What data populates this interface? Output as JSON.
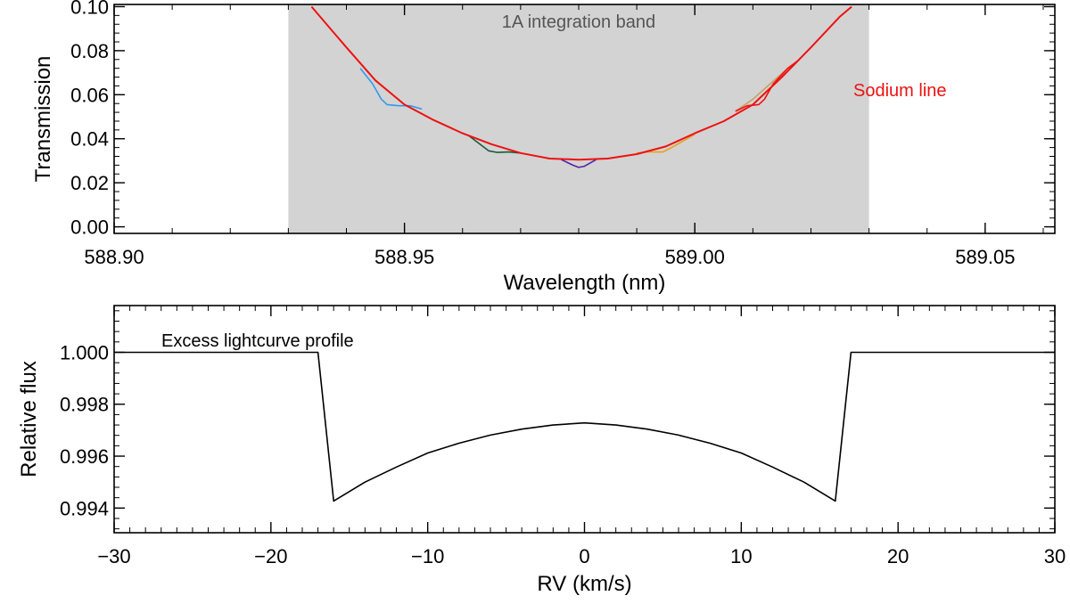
{
  "chart_data": [
    {
      "type": "line",
      "xlabel": "Wavelength (nm)",
      "ylabel": "Transmission",
      "xlim": [
        588.9,
        589.062
      ],
      "ylim": [
        -0.003,
        0.101
      ],
      "xticks": [
        "588.90",
        "588.95",
        "589.00",
        "589.05"
      ],
      "xtick_values": [
        588.9,
        588.95,
        589.0,
        589.05
      ],
      "yticks": [
        "0.00",
        "0.02",
        "0.04",
        "0.06",
        "0.08",
        "0.10"
      ],
      "ytick_values": [
        0.0,
        0.02,
        0.04,
        0.06,
        0.08,
        0.1
      ],
      "band": {
        "label": "1A integration band",
        "x_range": [
          588.93,
          589.03
        ],
        "color": "#d3d3d3"
      },
      "annotations": [
        {
          "text": "Sodium line",
          "color": "#ee1111"
        }
      ],
      "series": [
        {
          "color": "#ee1111",
          "x": [
            588.934,
            588.94,
            588.945,
            588.95,
            588.955,
            588.96,
            588.965,
            588.97,
            588.975,
            588.98,
            588.985,
            588.99,
            588.995,
            589.0,
            589.005,
            589.01,
            589.015,
            589.02,
            589.025,
            589.027
          ],
          "y": [
            0.1,
            0.0815,
            0.0665,
            0.0555,
            0.0485,
            0.0425,
            0.0375,
            0.0335,
            0.031,
            0.0305,
            0.031,
            0.033,
            0.0365,
            0.0425,
            0.048,
            0.0555,
            0.068,
            0.0815,
            0.0955,
            0.1
          ]
        },
        {
          "color": "#3399ee",
          "x": [
            588.9424,
            588.9445,
            588.946,
            588.947,
            588.949,
            588.951,
            588.953
          ],
          "y": [
            0.072,
            0.065,
            0.058,
            0.0555,
            0.055,
            0.055,
            0.0535
          ]
        },
        {
          "color": "#1a5c3a",
          "x": [
            588.961,
            588.963,
            588.9645,
            588.966,
            588.968,
            588.97
          ],
          "y": [
            0.0415,
            0.0375,
            0.0345,
            0.0338,
            0.034,
            0.0335
          ]
        },
        {
          "color": "#5522aa",
          "x": [
            588.977,
            588.979,
            588.98,
            588.981,
            588.983
          ],
          "y": [
            0.0305,
            0.028,
            0.027,
            0.0275,
            0.0305
          ]
        },
        {
          "color": "#e8a020",
          "x": [
            588.99,
            588.992,
            588.9945,
            588.996,
            588.998,
            589.0
          ],
          "y": [
            0.0335,
            0.034,
            0.034,
            0.036,
            0.039,
            0.042
          ]
        },
        {
          "color": "#c8a060",
          "x": [
            589.007,
            589.01,
            589.013,
            589.016
          ],
          "y": [
            0.0525,
            0.058,
            0.065,
            0.072
          ]
        },
        {
          "color": "#ee1111",
          "x": [
            589.007,
            589.009,
            589.011,
            589.012,
            589.0135,
            589.016,
            589.018
          ],
          "y": [
            0.0525,
            0.055,
            0.0555,
            0.058,
            0.065,
            0.072,
            0.076
          ]
        }
      ]
    },
    {
      "type": "line",
      "xlabel": "RV (km/s)",
      "ylabel": "Relative flux",
      "xlim": [
        -30,
        30
      ],
      "ylim": [
        0.99305,
        1.0018
      ],
      "xticks": [
        "−30",
        "−20",
        "−10",
        "0",
        "10",
        "20",
        "30"
      ],
      "xtick_values": [
        -30,
        -20,
        -10,
        0,
        10,
        20,
        30
      ],
      "yticks": [
        "0.994",
        "0.996",
        "0.998",
        "1.000"
      ],
      "ytick_values": [
        0.994,
        0.996,
        0.998,
        1.0
      ],
      "annotations": [
        {
          "text": "Excess lightcurve profile",
          "color": "#000000"
        }
      ],
      "series": [
        {
          "color": "#000000",
          "x": [
            -30,
            -17,
            -16,
            -14,
            -12,
            -10,
            -8,
            -6,
            -4,
            -2,
            0,
            2,
            4,
            6,
            8,
            10,
            12,
            14,
            16,
            17,
            30
          ],
          "y": [
            1.0,
            1.0,
            0.99427,
            0.995,
            0.99558,
            0.99612,
            0.9965,
            0.99681,
            0.99704,
            0.9972,
            0.99728,
            0.9972,
            0.99704,
            0.99681,
            0.9965,
            0.99612,
            0.99558,
            0.995,
            0.99427,
            1.0,
            1.0
          ]
        }
      ]
    }
  ]
}
